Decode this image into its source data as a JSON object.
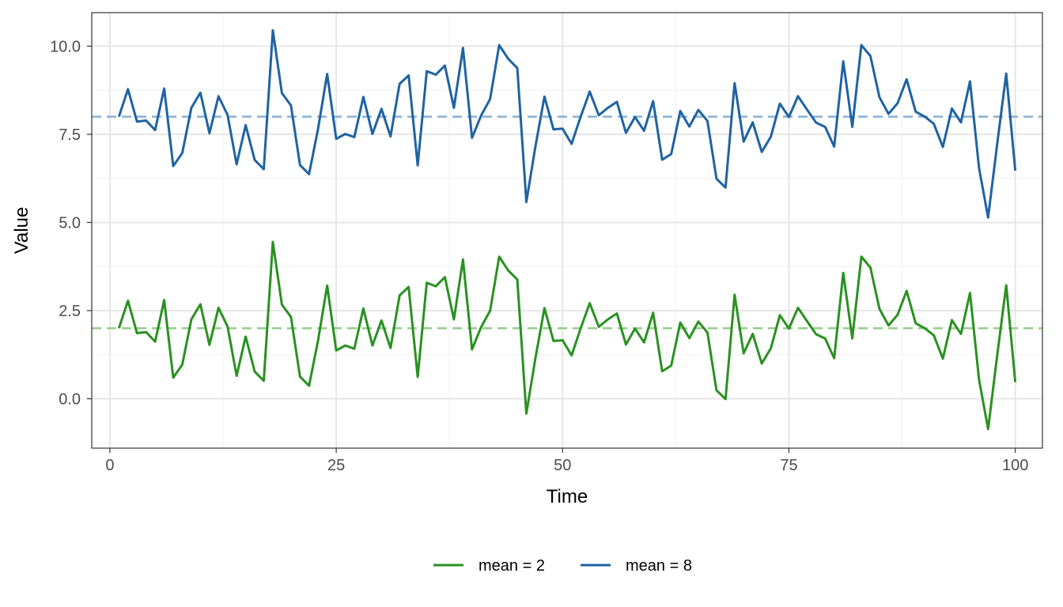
{
  "chart_data": {
    "type": "line",
    "title": "",
    "xlabel": "Time",
    "ylabel": "Value",
    "xlim": [
      -2,
      103
    ],
    "ylim": [
      -1.4,
      10.95
    ],
    "x_major_ticks": [
      0,
      25,
      50,
      75,
      100
    ],
    "x_tick_labels": [
      "0",
      "25",
      "50",
      "75",
      "100"
    ],
    "y_major_ticks": [
      0,
      2.5,
      5,
      7.5,
      10
    ],
    "y_tick_labels": [
      "0.0",
      "2.5",
      "5.0",
      "7.5",
      "10.0"
    ],
    "grid": true,
    "legend_position": "bottom",
    "x": [
      1,
      2,
      3,
      4,
      5,
      6,
      7,
      8,
      9,
      10,
      11,
      12,
      13,
      14,
      15,
      16,
      17,
      18,
      19,
      20,
      21,
      22,
      23,
      24,
      25,
      26,
      27,
      28,
      29,
      30,
      31,
      32,
      33,
      34,
      35,
      36,
      37,
      38,
      39,
      40,
      41,
      42,
      43,
      44,
      45,
      46,
      47,
      48,
      49,
      50,
      51,
      52,
      53,
      54,
      55,
      56,
      57,
      58,
      59,
      60,
      61,
      62,
      63,
      64,
      65,
      66,
      67,
      68,
      69,
      70,
      71,
      72,
      73,
      74,
      75,
      76,
      77,
      78,
      79,
      80,
      81,
      82,
      83,
      84,
      85,
      86,
      87,
      88,
      89,
      90,
      91,
      92,
      93,
      94,
      95,
      96,
      97,
      98,
      99,
      100
    ],
    "series": [
      {
        "name": "mean = 2",
        "color": "#2a9121",
        "mean": 2,
        "values": [
          2.0,
          2.78,
          1.86,
          1.89,
          1.62,
          2.8,
          0.6,
          0.97,
          2.25,
          2.68,
          1.53,
          2.58,
          2.05,
          0.65,
          1.76,
          0.77,
          0.51,
          4.45,
          2.67,
          2.32,
          0.63,
          0.37,
          1.66,
          3.21,
          1.37,
          1.51,
          1.42,
          2.56,
          1.51,
          2.22,
          1.44,
          2.93,
          3.17,
          0.62,
          3.29,
          3.19,
          3.45,
          2.25,
          3.95,
          1.4,
          2.03,
          2.5,
          4.03,
          3.64,
          3.38,
          -0.42,
          1.15,
          2.57,
          1.64,
          1.66,
          1.23,
          2.0,
          2.71,
          2.04,
          2.25,
          2.42,
          1.54,
          1.99,
          1.6,
          2.44,
          0.78,
          0.94,
          2.16,
          1.72,
          2.19,
          1.88,
          0.24,
          -0.01,
          2.95,
          1.29,
          1.84,
          1.0,
          1.43,
          2.37,
          1.99,
          2.58,
          2.2,
          1.83,
          1.71,
          1.15,
          3.57,
          1.71,
          4.03,
          3.72,
          2.55,
          2.08,
          2.38,
          3.06,
          2.14,
          2.0,
          1.8,
          1.14,
          2.23,
          1.84,
          3.0,
          0.54,
          -0.86,
          1.22,
          3.22,
          0.47
        ]
      },
      {
        "name": "mean = 8",
        "color": "#1f63a3",
        "mean": 8,
        "values": [
          8.0,
          8.78,
          7.86,
          7.89,
          7.62,
          8.8,
          6.6,
          6.97,
          8.25,
          8.68,
          7.53,
          8.58,
          8.05,
          6.65,
          7.76,
          6.77,
          6.51,
          10.45,
          8.67,
          8.32,
          6.63,
          6.37,
          7.66,
          9.21,
          7.37,
          7.51,
          7.42,
          8.56,
          7.51,
          8.22,
          7.44,
          8.93,
          9.17,
          6.62,
          9.29,
          9.19,
          9.45,
          8.25,
          9.95,
          7.4,
          8.03,
          8.5,
          10.03,
          9.64,
          9.38,
          5.58,
          7.15,
          8.57,
          7.64,
          7.66,
          7.23,
          8.0,
          8.71,
          8.04,
          8.25,
          8.42,
          7.54,
          7.99,
          7.6,
          8.44,
          6.78,
          6.94,
          8.16,
          7.72,
          8.19,
          7.88,
          6.24,
          5.99,
          8.95,
          7.29,
          7.84,
          7.0,
          7.43,
          8.37,
          7.99,
          8.58,
          8.2,
          7.83,
          7.71,
          7.15,
          9.57,
          7.71,
          10.03,
          9.72,
          8.55,
          8.08,
          8.38,
          9.06,
          8.14,
          8.0,
          7.8,
          7.14,
          8.23,
          7.84,
          9.0,
          6.54,
          5.14,
          7.22,
          9.22,
          6.47
        ]
      }
    ],
    "reference_lines": [
      {
        "name": "mean = 2 reference",
        "y": 2,
        "color": "#8fcb85",
        "style": "dashed"
      },
      {
        "name": "mean = 8 reference",
        "y": 8,
        "color": "#89b1d4",
        "style": "dashed"
      }
    ]
  }
}
